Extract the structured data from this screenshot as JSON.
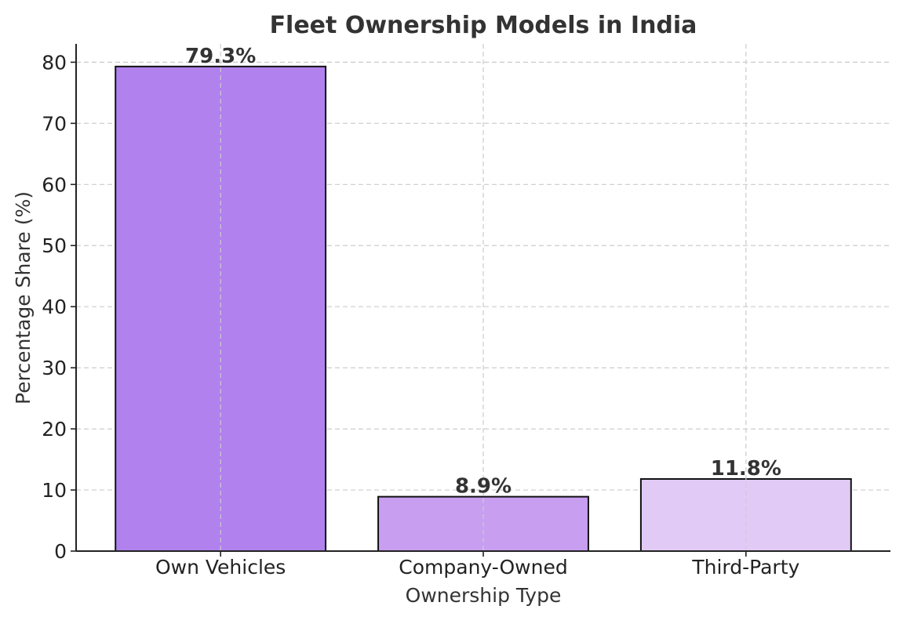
{
  "chart_data": {
    "type": "bar",
    "title": "Fleet Ownership Models in India",
    "xlabel": "Ownership Type",
    "ylabel": "Percentage Share (%)",
    "categories": [
      "Own Vehicles",
      "Company-Owned",
      "Third-Party"
    ],
    "values": [
      79.3,
      8.9,
      11.8
    ],
    "data_labels": [
      "79.3%",
      "8.9%",
      "11.8%"
    ],
    "colors": [
      "#b181ed",
      "#c79ef0",
      "#e1cbf6"
    ],
    "ylim": [
      0,
      83
    ],
    "yticks": [
      0,
      10,
      20,
      30,
      40,
      50,
      60,
      70,
      80
    ],
    "grid": true,
    "legend": "none"
  }
}
